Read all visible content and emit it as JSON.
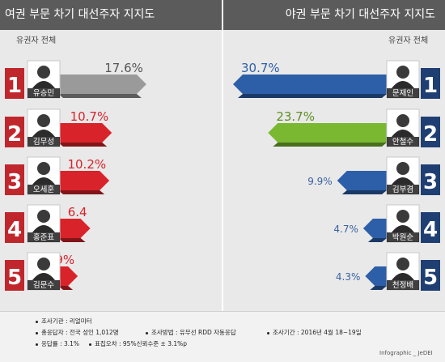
{
  "left_title": "여권 부문 차기 대선주자 지지도",
  "right_title": "야권 부문 차기 대선주자 지지도",
  "left_subtitle": "유권자 전체",
  "right_subtitle": "유권자 전체",
  "chart_data": [
    {
      "type": "bar",
      "title": "여권 부문 차기 대선주자 지지도",
      "subtitle": "유권자 전체",
      "categories": [
        "유승민",
        "김무성",
        "오세훈",
        "홍준표",
        "김문수"
      ],
      "ranks": [
        "1",
        "2",
        "3",
        "4",
        "5"
      ],
      "values": [
        17.6,
        10.7,
        10.2,
        6.4,
        3.9
      ],
      "labels": [
        "17.6%",
        "10.7%",
        "10.2%",
        "6.4",
        "3.9%"
      ],
      "colors": [
        "#9a9a9a",
        "#d9232b",
        "#d9232b",
        "#d9232b",
        "#d9232b"
      ],
      "rank_color": "#c0272d"
    },
    {
      "type": "bar",
      "title": "야권 부문 차기 대선주자 지지도",
      "subtitle": "유권자 전체",
      "categories": [
        "문재인",
        "안철수",
        "김부겸",
        "박원순",
        "천정배"
      ],
      "ranks": [
        "1",
        "2",
        "3",
        "4",
        "5"
      ],
      "values": [
        30.7,
        23.7,
        9.9,
        4.7,
        4.3
      ],
      "labels": [
        "30.7%",
        "23.7%",
        "9.9%",
        "4.7%",
        "4.3%"
      ],
      "colors": [
        "#2d5fa8",
        "#7ab831",
        "#2d5fa8",
        "#2d5fa8",
        "#2d5fa8"
      ],
      "rank_color": "#1f3f73"
    }
  ],
  "footer": {
    "agency": "조사기관 : 리얼미터",
    "respondents": "총응답자 : 전국 성인 1,012명",
    "method": "조사방법 : 유무선 RDD 자동응답",
    "period": "조사기간 : 2016년 4월 18~19일",
    "response_rate": "응답률 : 3.1%",
    "margin": "표집오차 : 95%신뢰수준 ± 3.1%p"
  },
  "credit": "Infographic _ JeDEI"
}
